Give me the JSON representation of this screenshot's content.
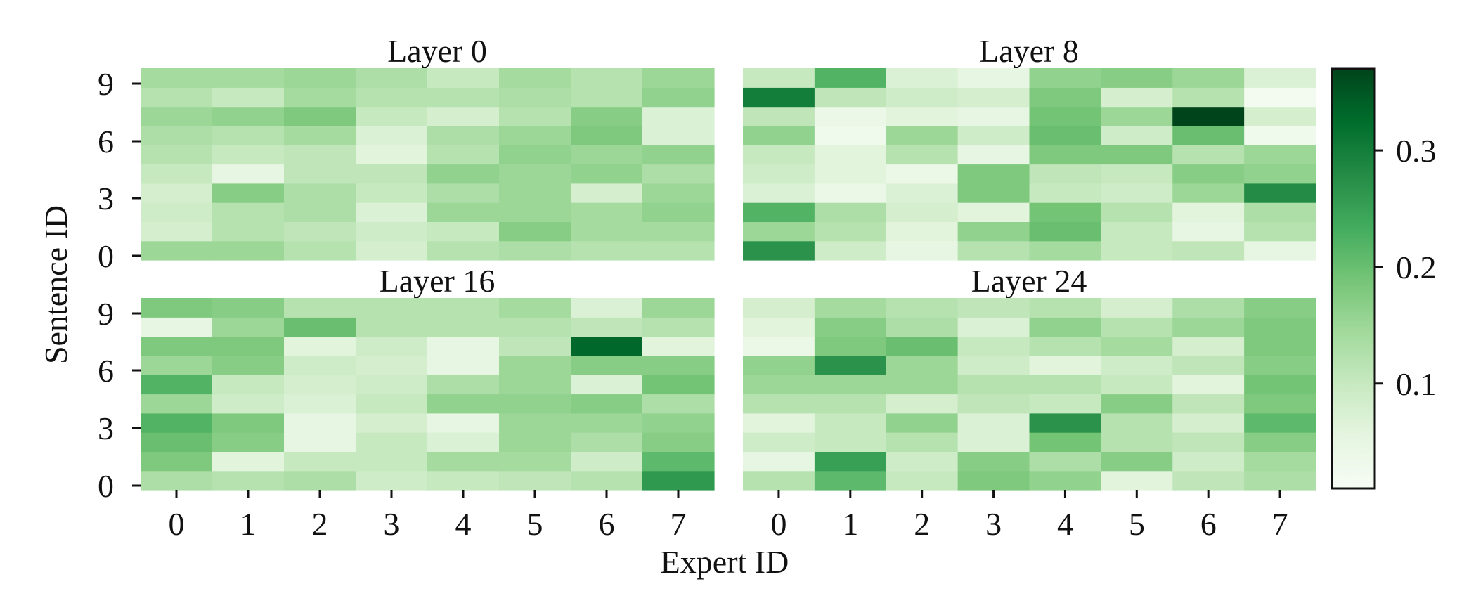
{
  "chart_data": [
    {
      "type": "heatmap",
      "title": "Layer 0",
      "x": [
        0,
        1,
        2,
        3,
        4,
        5,
        6,
        7
      ],
      "y": [
        0,
        1,
        2,
        3,
        4,
        5,
        6,
        7,
        8,
        9
      ],
      "values": [
        [
          0.15,
          0.15,
          0.12,
          0.08,
          0.12,
          0.13,
          0.12,
          0.12
        ],
        [
          0.08,
          0.12,
          0.11,
          0.09,
          0.1,
          0.17,
          0.14,
          0.14
        ],
        [
          0.09,
          0.12,
          0.13,
          0.07,
          0.15,
          0.15,
          0.14,
          0.16
        ],
        [
          0.08,
          0.17,
          0.13,
          0.1,
          0.13,
          0.15,
          0.08,
          0.15
        ],
        [
          0.1,
          0.05,
          0.11,
          0.11,
          0.16,
          0.15,
          0.16,
          0.13
        ],
        [
          0.12,
          0.1,
          0.11,
          0.06,
          0.12,
          0.16,
          0.15,
          0.16
        ],
        [
          0.13,
          0.12,
          0.14,
          0.07,
          0.13,
          0.15,
          0.18,
          0.07
        ],
        [
          0.15,
          0.16,
          0.18,
          0.1,
          0.08,
          0.12,
          0.17,
          0.07
        ],
        [
          0.12,
          0.1,
          0.14,
          0.12,
          0.12,
          0.13,
          0.12,
          0.16
        ],
        [
          0.14,
          0.14,
          0.15,
          0.13,
          0.1,
          0.14,
          0.12,
          0.15
        ]
      ]
    },
    {
      "type": "heatmap",
      "title": "Layer 8",
      "x": [
        0,
        1,
        2,
        3,
        4,
        5,
        6,
        7
      ],
      "y": [
        0,
        1,
        2,
        3,
        4,
        5,
        6,
        7,
        8,
        9
      ],
      "values": [
        [
          0.27,
          0.09,
          0.05,
          0.12,
          0.14,
          0.1,
          0.11,
          0.05
        ],
        [
          0.15,
          0.12,
          0.06,
          0.16,
          0.2,
          0.1,
          0.05,
          0.12
        ],
        [
          0.22,
          0.13,
          0.08,
          0.06,
          0.19,
          0.12,
          0.06,
          0.13
        ],
        [
          0.07,
          0.04,
          0.07,
          0.18,
          0.1,
          0.09,
          0.15,
          0.28
        ],
        [
          0.09,
          0.06,
          0.04,
          0.18,
          0.11,
          0.1,
          0.17,
          0.16
        ],
        [
          0.1,
          0.06,
          0.12,
          0.05,
          0.18,
          0.18,
          0.12,
          0.15
        ],
        [
          0.16,
          0.03,
          0.15,
          0.09,
          0.2,
          0.09,
          0.2,
          0.03
        ],
        [
          0.11,
          0.04,
          0.06,
          0.05,
          0.19,
          0.15,
          0.37,
          0.08
        ],
        [
          0.3,
          0.11,
          0.09,
          0.08,
          0.18,
          0.08,
          0.12,
          0.02
        ],
        [
          0.1,
          0.22,
          0.07,
          0.05,
          0.16,
          0.17,
          0.15,
          0.07
        ]
      ]
    },
    {
      "type": "heatmap",
      "title": "Layer 16",
      "x": [
        0,
        1,
        2,
        3,
        4,
        5,
        6,
        7
      ],
      "y": [
        0,
        1,
        2,
        3,
        4,
        5,
        6,
        7,
        8,
        9
      ],
      "values": [
        [
          0.13,
          0.12,
          0.13,
          0.09,
          0.1,
          0.11,
          0.12,
          0.26
        ],
        [
          0.18,
          0.06,
          0.1,
          0.1,
          0.14,
          0.14,
          0.09,
          0.21
        ],
        [
          0.2,
          0.17,
          0.05,
          0.1,
          0.07,
          0.15,
          0.13,
          0.17
        ],
        [
          0.22,
          0.18,
          0.05,
          0.08,
          0.05,
          0.15,
          0.15,
          0.16
        ],
        [
          0.15,
          0.09,
          0.07,
          0.1,
          0.16,
          0.16,
          0.17,
          0.13
        ],
        [
          0.22,
          0.1,
          0.08,
          0.09,
          0.13,
          0.15,
          0.07,
          0.19
        ],
        [
          0.15,
          0.17,
          0.09,
          0.08,
          0.05,
          0.15,
          0.17,
          0.17
        ],
        [
          0.18,
          0.18,
          0.06,
          0.09,
          0.05,
          0.11,
          0.33,
          0.06
        ],
        [
          0.05,
          0.15,
          0.2,
          0.12,
          0.12,
          0.12,
          0.11,
          0.12
        ],
        [
          0.18,
          0.17,
          0.12,
          0.12,
          0.12,
          0.14,
          0.07,
          0.15
        ]
      ]
    },
    {
      "type": "heatmap",
      "title": "Layer 24",
      "x": [
        0,
        1,
        2,
        3,
        4,
        5,
        6,
        7
      ],
      "y": [
        0,
        1,
        2,
        3,
        4,
        5,
        6,
        7,
        8,
        9
      ],
      "values": [
        [
          0.12,
          0.21,
          0.1,
          0.18,
          0.16,
          0.06,
          0.11,
          0.13
        ],
        [
          0.05,
          0.25,
          0.09,
          0.17,
          0.13,
          0.17,
          0.09,
          0.14
        ],
        [
          0.09,
          0.1,
          0.12,
          0.07,
          0.19,
          0.12,
          0.11,
          0.17
        ],
        [
          0.06,
          0.1,
          0.16,
          0.07,
          0.27,
          0.12,
          0.08,
          0.21
        ],
        [
          0.12,
          0.12,
          0.08,
          0.11,
          0.1,
          0.17,
          0.11,
          0.18
        ],
        [
          0.15,
          0.15,
          0.15,
          0.12,
          0.12,
          0.1,
          0.06,
          0.19
        ],
        [
          0.16,
          0.27,
          0.15,
          0.09,
          0.06,
          0.09,
          0.11,
          0.17
        ],
        [
          0.04,
          0.18,
          0.2,
          0.1,
          0.12,
          0.14,
          0.08,
          0.18
        ],
        [
          0.06,
          0.17,
          0.13,
          0.07,
          0.16,
          0.12,
          0.15,
          0.18
        ],
        [
          0.08,
          0.14,
          0.12,
          0.11,
          0.12,
          0.08,
          0.13,
          0.17
        ]
      ]
    }
  ],
  "labels": {
    "titles": [
      "Layer 0",
      "Layer 8",
      "Layer 16",
      "Layer 24"
    ],
    "xlabel": "Expert ID",
    "ylabel": "Sentence ID",
    "x_ticks": [
      "0",
      "1",
      "2",
      "3",
      "4",
      "5",
      "6",
      "7"
    ],
    "y_ticks": [
      "0",
      "3",
      "6",
      "9"
    ],
    "colorbar_ticks": [
      "0.1",
      "0.2",
      "0.3"
    ]
  },
  "colorbar": {
    "min": 0.01,
    "max": 0.37,
    "tick_values": [
      0.1,
      0.2,
      0.3
    ],
    "colormap": "Greens",
    "colors": [
      "#f7fcf5",
      "#e5f5e0",
      "#c7e9c0",
      "#a1d99b",
      "#74c476",
      "#41ab5d",
      "#238b45",
      "#006d2c",
      "#00441b"
    ]
  }
}
